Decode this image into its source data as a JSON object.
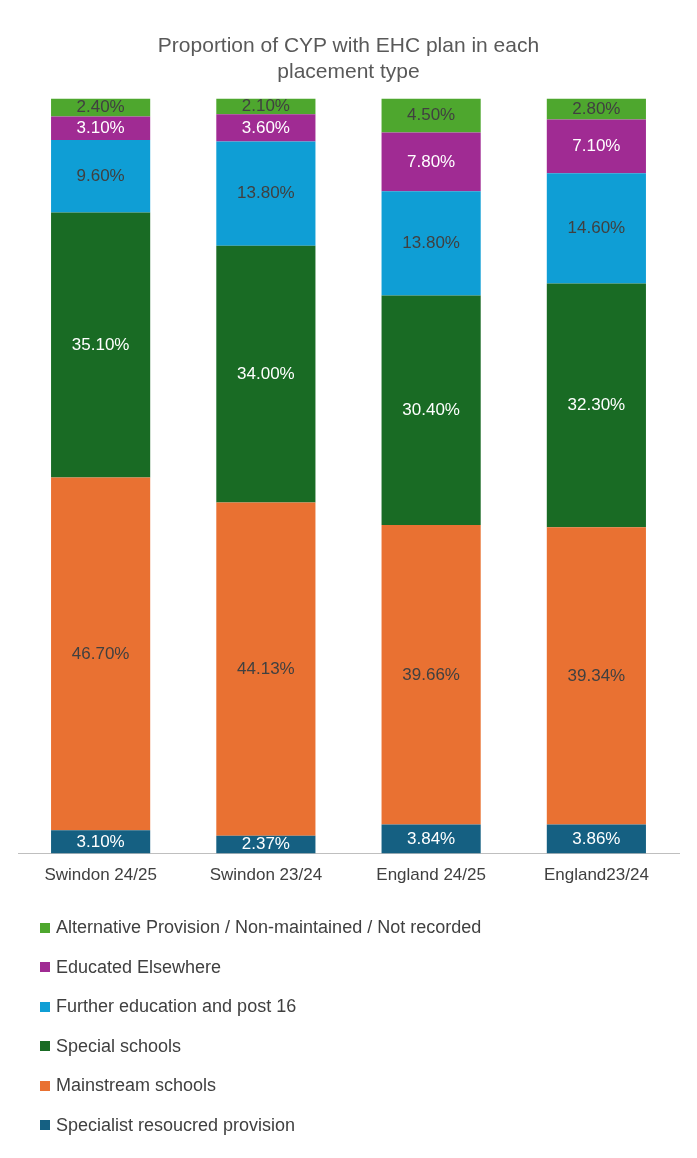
{
  "chart_data": {
    "type": "bar",
    "title": "Proportion of CYP with EHC plan in each placement type",
    "stacked": true,
    "legend": "bottom",
    "grid": false,
    "categories": [
      "Swindon 24/25",
      "Swindon 23/24",
      "England 24/25",
      "England23/24"
    ],
    "series": [
      {
        "name": "Specialist resoucred provision",
        "color": "#156082",
        "values": [
          3.1,
          2.37,
          3.84,
          3.86
        ],
        "value_labels": [
          "3.10%",
          "2.37%",
          "3.84%",
          "3.86%"
        ]
      },
      {
        "name": "Mainstream schools",
        "color": "#e97132",
        "values": [
          46.7,
          44.13,
          39.66,
          39.34
        ],
        "value_labels": [
          "46.70%",
          "44.13%",
          "39.66%",
          "39.34%"
        ]
      },
      {
        "name": "Special schools",
        "color": "#196b24",
        "values": [
          35.1,
          34.0,
          30.4,
          32.3
        ],
        "value_labels": [
          "35.10%",
          "34.00%",
          "30.40%",
          "32.30%"
        ]
      },
      {
        "name": "Further education and post 16",
        "color": "#0f9ed5",
        "values": [
          9.6,
          13.8,
          13.8,
          14.6
        ],
        "value_labels": [
          "9.60%",
          "13.80%",
          "13.80%",
          "14.60%"
        ]
      },
      {
        "name": "Educated Elsewhere",
        "color": "#a02b93",
        "values": [
          3.1,
          3.6,
          7.8,
          7.1
        ],
        "value_labels": [
          "3.10%",
          "3.60%",
          "7.80%",
          "7.10%"
        ]
      },
      {
        "name": "Alternative Provision / Non-maintained / Not recorded",
        "color": "#4ea72e",
        "values": [
          2.4,
          2.1,
          4.5,
          2.8
        ],
        "value_labels": [
          "2.40%",
          "2.10%",
          "4.50%",
          "2.80%"
        ]
      }
    ]
  }
}
